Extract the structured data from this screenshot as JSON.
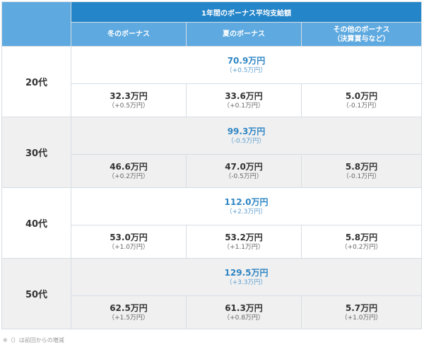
{
  "header": {
    "title": "1年間のボーナス平均支給額",
    "columns": [
      "冬のボーナス",
      "夏のボーナス",
      "その他のボーナス\n（決算賞与など）"
    ]
  },
  "rows": [
    {
      "age": "20代",
      "total": {
        "amount": "70.9万円",
        "change": "（+0.5万円）"
      },
      "winter": {
        "amount": "32.3万円",
        "change": "（+0.5万円）"
      },
      "summer": {
        "amount": "33.6万円",
        "change": "（+0.1万円）"
      },
      "other": {
        "amount": "5.0万円",
        "change": "（-0.1万円）"
      }
    },
    {
      "age": "30代",
      "total": {
        "amount": "99.3万円",
        "change": "（-0.5万円）"
      },
      "winter": {
        "amount": "46.6万円",
        "change": "（+0.2万円）"
      },
      "summer": {
        "amount": "47.0万円",
        "change": "（-0.5万円）"
      },
      "other": {
        "amount": "5.8万円",
        "change": "（-0.1万円）"
      }
    },
    {
      "age": "40代",
      "total": {
        "amount": "112.0万円",
        "change": "（+2.3万円）"
      },
      "winter": {
        "amount": "53.0万円",
        "change": "（+1.0万円）"
      },
      "summer": {
        "amount": "53.2万円",
        "change": "（+1.1万円）"
      },
      "other": {
        "amount": "5.8万円",
        "change": "（+0.2万円）"
      }
    },
    {
      "age": "50代",
      "total": {
        "amount": "129.5万円",
        "change": "（+3.3万円）"
      },
      "winter": {
        "amount": "62.5万円",
        "change": "（+1.5万円）"
      },
      "summer": {
        "amount": "61.3万円",
        "change": "（+0.8万円）"
      },
      "other": {
        "amount": "5.7万円",
        "change": "（+1.0万円）"
      }
    }
  ],
  "footnote": "※（）は前回からの増減",
  "colors": {
    "header_dark": "#2485c9",
    "header_light": "#5da9e0",
    "total_text": "#2f86c4",
    "row_gray": "#f0f0f0"
  }
}
